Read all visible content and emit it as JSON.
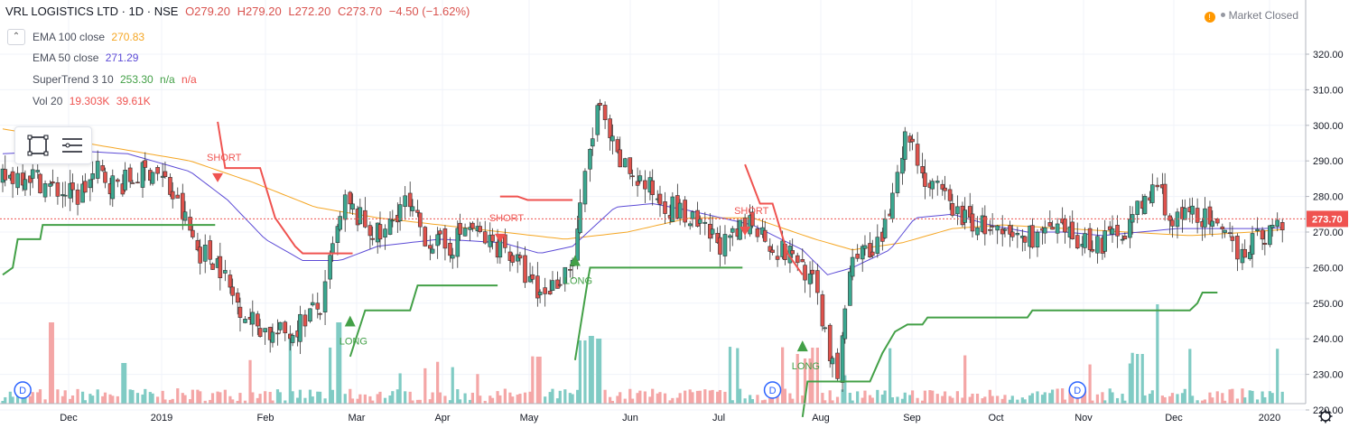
{
  "header": {
    "symbol": "VRL LOGISTICS LTD · 1D · NSE",
    "open": "O279.20",
    "high": "H279.20",
    "low": "L272.20",
    "close": "C273.70",
    "change": "−4.50 (−1.62%)"
  },
  "indicators": [
    {
      "label": "EMA 100 close",
      "value": "270.83",
      "color": "#f5a623"
    },
    {
      "label": "EMA 50 close",
      "value": "271.29",
      "color": "#5c4bd6"
    },
    {
      "label": "SuperTrend 3 10",
      "value": "253.30",
      "value2": "n/a",
      "value3": "n/a",
      "color": "#43a047"
    },
    {
      "label": "Vol 20",
      "value": "19.303K",
      "value2": "39.61K",
      "color": "#ef5350"
    }
  ],
  "market_status": "Market Closed",
  "icons": {
    "collapse": "chevron-up-icon",
    "rect_tool": "rectangle-tool-icon",
    "settings_tool": "horizontal-lines-icon",
    "settings": "gear-icon",
    "market": "warning-icon"
  },
  "colors": {
    "up": "#26a69a",
    "down": "#ef5350",
    "ema100": "#f5a623",
    "ema50": "#5c4bd6",
    "supertrend_up": "#43a047",
    "supertrend_down": "#ef5350",
    "last_price": "#ef5350"
  },
  "chart_data": {
    "type": "candlestick",
    "title": "VRL LOGISTICS LTD · 1D · NSE",
    "ylim": [
      212,
      323
    ],
    "y_ticks": [
      "220.00",
      "230.00",
      "240.00",
      "250.00",
      "260.00",
      "270.00",
      "280.00",
      "290.00",
      "300.00",
      "310.00",
      "320.00"
    ],
    "x_labels": [
      "Dec",
      "2019",
      "Feb",
      "Mar",
      "Apr",
      "May",
      "Jun",
      "Jul",
      "Aug",
      "Sep",
      "Oct",
      "Nov",
      "Dec",
      "2020"
    ],
    "last_price_label": "273.70",
    "last_price": 273.7,
    "close_path": [
      [
        0,
        285
      ],
      [
        10,
        287
      ],
      [
        20,
        282
      ],
      [
        30,
        280
      ],
      [
        38,
        287
      ],
      [
        45,
        283
      ],
      [
        52,
        285
      ],
      [
        60,
        288
      ],
      [
        65,
        284
      ],
      [
        74,
        272
      ],
      [
        78,
        265
      ],
      [
        86,
        262
      ],
      [
        92,
        252
      ],
      [
        100,
        245
      ],
      [
        108,
        241
      ],
      [
        116,
        242
      ],
      [
        122,
        247
      ],
      [
        128,
        249
      ],
      [
        132,
        265
      ],
      [
        137,
        278
      ],
      [
        145,
        272
      ],
      [
        152,
        268
      ],
      [
        160,
        279
      ],
      [
        170,
        268
      ],
      [
        178,
        265
      ],
      [
        186,
        272
      ],
      [
        194,
        267
      ],
      [
        201,
        266
      ],
      [
        208,
        259
      ],
      [
        214,
        252
      ],
      [
        220,
        255
      ],
      [
        228,
        262
      ],
      [
        233,
        285
      ],
      [
        238,
        305
      ],
      [
        246,
        290
      ],
      [
        254,
        285
      ],
      [
        262,
        280
      ],
      [
        270,
        276
      ],
      [
        280,
        270
      ],
      [
        290,
        266
      ],
      [
        300,
        274
      ],
      [
        306,
        268
      ],
      [
        310,
        265
      ],
      [
        318,
        263
      ],
      [
        322,
        258
      ],
      [
        326,
        252
      ],
      [
        330,
        240
      ],
      [
        332,
        232
      ],
      [
        334,
        226
      ],
      [
        338,
        256
      ],
      [
        342,
        266
      ],
      [
        348,
        262
      ],
      [
        354,
        272
      ],
      [
        358,
        290
      ],
      [
        362,
        298
      ],
      [
        366,
        291
      ],
      [
        370,
        283
      ],
      [
        376,
        280
      ],
      [
        384,
        274
      ],
      [
        392,
        272
      ],
      [
        400,
        268
      ],
      [
        410,
        269
      ],
      [
        420,
        270
      ],
      [
        430,
        268
      ],
      [
        440,
        267
      ],
      [
        450,
        272
      ],
      [
        458,
        279
      ],
      [
        462,
        284
      ],
      [
        468,
        272
      ],
      [
        478,
        276
      ],
      [
        488,
        268
      ],
      [
        496,
        265
      ],
      [
        506,
        270
      ],
      [
        513,
        272
      ]
    ],
    "ema100_path": [
      [
        0,
        299
      ],
      [
        25,
        296
      ],
      [
        50,
        293
      ],
      [
        75,
        290
      ],
      [
        100,
        284
      ],
      [
        125,
        277
      ],
      [
        150,
        274
      ],
      [
        175,
        272
      ],
      [
        200,
        270
      ],
      [
        225,
        268
      ],
      [
        250,
        270
      ],
      [
        275,
        274
      ],
      [
        300,
        274
      ],
      [
        325,
        268
      ],
      [
        340,
        265
      ],
      [
        360,
        267
      ],
      [
        380,
        271
      ],
      [
        400,
        272
      ],
      [
        425,
        271
      ],
      [
        450,
        270
      ],
      [
        475,
        269
      ],
      [
        500,
        270
      ],
      [
        513,
        270.8
      ]
    ],
    "ema50_path": [
      [
        0,
        292
      ],
      [
        25,
        293
      ],
      [
        50,
        292
      ],
      [
        75,
        287
      ],
      [
        90,
        279
      ],
      [
        105,
        268
      ],
      [
        120,
        262
      ],
      [
        135,
        262
      ],
      [
        150,
        266
      ],
      [
        175,
        268
      ],
      [
        200,
        267
      ],
      [
        215,
        264
      ],
      [
        228,
        266
      ],
      [
        245,
        277
      ],
      [
        260,
        278
      ],
      [
        275,
        276
      ],
      [
        300,
        272
      ],
      [
        320,
        265
      ],
      [
        330,
        258
      ],
      [
        340,
        260
      ],
      [
        355,
        265
      ],
      [
        365,
        274
      ],
      [
        380,
        275
      ],
      [
        395,
        272
      ],
      [
        410,
        270
      ],
      [
        425,
        270
      ],
      [
        440,
        269
      ],
      [
        455,
        270
      ],
      [
        470,
        271
      ],
      [
        490,
        271
      ],
      [
        505,
        271
      ],
      [
        513,
        271.3
      ]
    ],
    "supertrend_segments": [
      {
        "dir": "up",
        "points": [
          [
            0,
            258
          ],
          [
            4,
            260
          ],
          [
            6,
            268
          ],
          [
            15,
            268
          ],
          [
            16,
            272
          ],
          [
            85,
            272
          ]
        ]
      },
      {
        "dir": "down",
        "points": [
          [
            86,
            301
          ],
          [
            89,
            288
          ],
          [
            103,
            288
          ],
          [
            109,
            274
          ],
          [
            117,
            266
          ],
          [
            120,
            264
          ],
          [
            140,
            264
          ]
        ]
      },
      {
        "dir": "up",
        "points": [
          [
            139,
            235
          ],
          [
            145,
            248
          ],
          [
            163,
            248
          ],
          [
            166,
            255
          ],
          [
            198,
            255
          ]
        ]
      },
      {
        "dir": "down",
        "points": [
          [
            199,
            280
          ],
          [
            206,
            280
          ],
          [
            210,
            279
          ],
          [
            228,
            279
          ]
        ]
      },
      {
        "dir": "up",
        "points": [
          [
            229,
            234
          ],
          [
            234,
            256
          ],
          [
            235,
            260
          ],
          [
            296,
            260
          ]
        ]
      },
      {
        "dir": "down",
        "points": [
          [
            297,
            289
          ],
          [
            303,
            278
          ],
          [
            308,
            278
          ],
          [
            314,
            264
          ],
          [
            320,
            258
          ]
        ]
      },
      {
        "dir": "up",
        "points": [
          [
            320,
            218
          ],
          [
            322,
            228
          ],
          [
            347,
            228
          ],
          [
            352,
            236
          ],
          [
            357,
            242
          ],
          [
            362,
            244
          ],
          [
            368,
            244
          ],
          [
            370,
            246
          ],
          [
            410,
            246
          ],
          [
            412,
            248
          ],
          [
            420,
            248
          ],
          [
            460,
            248
          ],
          [
            470,
            248
          ],
          [
            475,
            248
          ],
          [
            478,
            250
          ],
          [
            480,
            253
          ],
          [
            486,
            253
          ]
        ]
      }
    ],
    "signals": [
      {
        "type": "SHORT",
        "x": 86,
        "y": 285
      },
      {
        "type": "LONG",
        "x": 139,
        "y": 245
      },
      {
        "type": "SHORT",
        "x": 199,
        "y": 268
      },
      {
        "type": "LONG",
        "x": 229,
        "y": 262
      },
      {
        "type": "SHORT",
        "x": 297,
        "y": 270
      },
      {
        "type": "LONG",
        "x": 320,
        "y": 238
      }
    ],
    "dividends": [
      {
        "label": "D",
        "x": 8
      },
      {
        "label": "D",
        "x": 308
      },
      {
        "label": "D",
        "x": 430
      }
    ]
  }
}
